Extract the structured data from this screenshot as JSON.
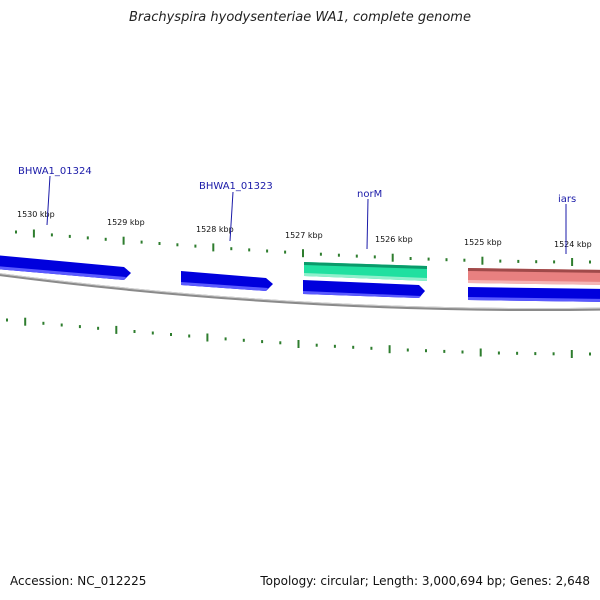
{
  "title": "Brachyspira hyodysenteriae WA1, complete genome",
  "footer": {
    "accession": "Accession: NC_012225",
    "summary": "Topology: circular; Length: 3,000,694 bp; Genes: 2,648"
  },
  "colors": {
    "backbone": "#8a8a8a",
    "tick": "#2e7d2e",
    "gene_blue": "#0000dd",
    "gene_green": "#20e0a0",
    "gene_pink": "#e88080",
    "label": "#1a1aa8"
  },
  "map": {
    "kbp_ticks": [
      {
        "kbp": 1530,
        "label": "1530 kbp"
      },
      {
        "kbp": 1529,
        "label": "1529 kbp"
      },
      {
        "kbp": 1528,
        "label": "1528 kbp"
      },
      {
        "kbp": 1527,
        "label": "1527 kbp"
      },
      {
        "kbp": 1526,
        "label": "1526 kbp"
      },
      {
        "kbp": 1525,
        "label": "1525 kbp"
      },
      {
        "kbp": 1524,
        "label": "1524 kbp"
      }
    ],
    "gene_labels": [
      "BHWA1_01324",
      "BHWA1_01323",
      "norM",
      "iars"
    ]
  }
}
